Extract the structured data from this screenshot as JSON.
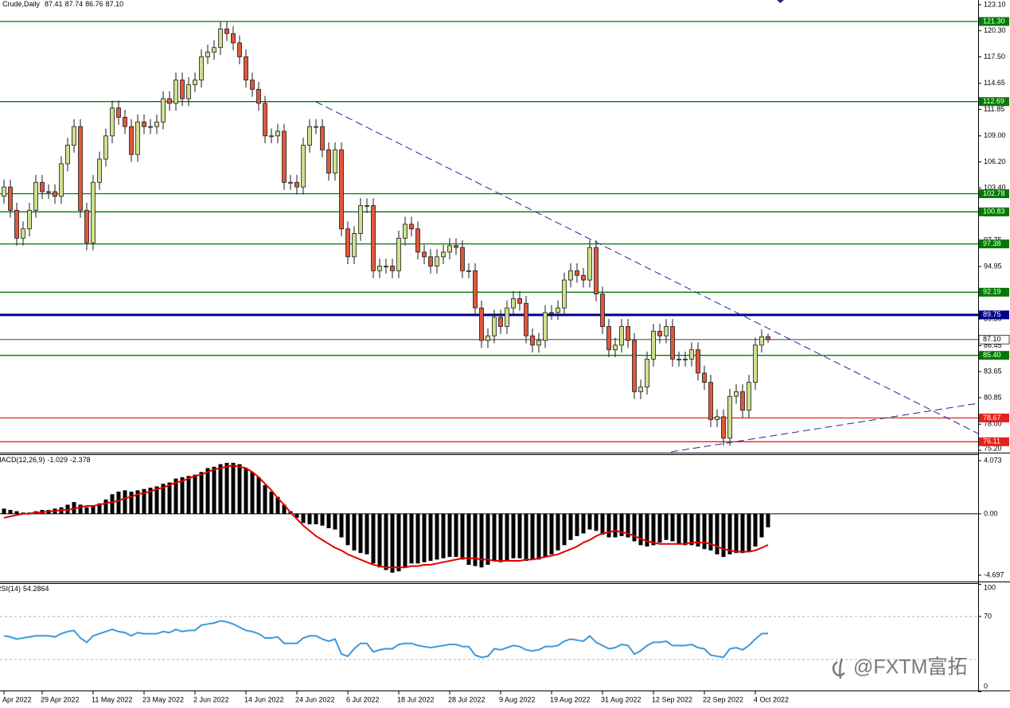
{
  "chart_data": {
    "type": "candlestick",
    "symbol": "Crude,Daily",
    "ohlc_label": [
      "87.41",
      "87.74",
      "86.76",
      "87.10"
    ],
    "categories": [
      "Apr 2022",
      null,
      null,
      null,
      null,
      null,
      "29 Apr 2022",
      null,
      null,
      null,
      null,
      null,
      null,
      null,
      "11 May 2022",
      null,
      null,
      null,
      null,
      null,
      null,
      null,
      "23 May 2022",
      null,
      null,
      null,
      null,
      null,
      null,
      null,
      "2 Jun 2022",
      null,
      null,
      null,
      null,
      null,
      null,
      null,
      "14 Jun 2022",
      null,
      null,
      null,
      null,
      null,
      null,
      null,
      "24 Jun 2022",
      null,
      null,
      null,
      null,
      null,
      null,
      null,
      "6 Jul 2022",
      null,
      null,
      null,
      null,
      null,
      null,
      null,
      "18 Jul 2022",
      null,
      null,
      null,
      null,
      null,
      null,
      null,
      "28 Jul 2022",
      null,
      null,
      null,
      null,
      null,
      null,
      null,
      "9 Aug 2022",
      null,
      null,
      null,
      null,
      null,
      null,
      null,
      "19 Aug 2022",
      null,
      null,
      null,
      null,
      null,
      null,
      null,
      "31 Aug 2022",
      null,
      null,
      null,
      null,
      null,
      null,
      null,
      "12 Sep 2022",
      null,
      null,
      null,
      null,
      null,
      null,
      null,
      "22 Sep 2022",
      null,
      null,
      null,
      null,
      null,
      null,
      null,
      "4 Oct 2022",
      null,
      null
    ],
    "candles": [
      [
        102.5,
        104.3,
        101.7,
        103.5
      ],
      [
        103.5,
        104.3,
        100.2,
        101
      ],
      [
        101,
        101.8,
        97.2,
        98
      ],
      [
        98,
        99.8,
        97.2,
        99
      ],
      [
        99,
        101.8,
        98.2,
        101
      ],
      [
        101,
        104.8,
        100.2,
        104
      ],
      [
        104,
        104.8,
        102.2,
        103
      ],
      [
        103,
        103.8,
        102.2,
        103
      ],
      [
        103,
        103.8,
        101.7,
        102.5
      ],
      [
        102.5,
        106.8,
        101.7,
        106
      ],
      [
        106,
        108.8,
        105.2,
        108
      ],
      [
        108,
        110.8,
        107.2,
        110
      ],
      [
        110,
        110.8,
        100.2,
        101
      ],
      [
        101,
        101.8,
        96.7,
        97.5
      ],
      [
        97.5,
        104.8,
        96.7,
        104
      ],
      [
        104,
        107.3,
        103.2,
        106.5
      ],
      [
        106.5,
        109.8,
        105.7,
        109
      ],
      [
        109,
        112.8,
        108.2,
        112
      ],
      [
        112,
        112.8,
        110.2,
        111
      ],
      [
        111,
        111.8,
        109.2,
        110
      ],
      [
        110,
        110.8,
        106.2,
        107
      ],
      [
        107,
        111.3,
        106.2,
        110.5
      ],
      [
        110.5,
        111.3,
        109.2,
        110
      ],
      [
        110,
        110.8,
        109.2,
        110
      ],
      [
        110,
        111.3,
        109.2,
        110.5
      ],
      [
        110.5,
        113.8,
        109.7,
        113
      ],
      [
        113,
        113.8,
        111.7,
        112.5
      ],
      [
        112.5,
        115.8,
        111.7,
        115
      ],
      [
        115,
        115.8,
        112.2,
        113
      ],
      [
        113,
        115.3,
        112.2,
        114.5
      ],
      [
        114.5,
        115.8,
        113.7,
        115
      ],
      [
        115,
        118.3,
        114.2,
        117.5
      ],
      [
        117.5,
        118.8,
        116.7,
        118
      ],
      [
        118,
        119.3,
        117.2,
        118.5
      ],
      [
        118.5,
        121.3,
        117.7,
        120.5
      ],
      [
        120.5,
        121.3,
        119.2,
        120
      ],
      [
        120,
        120.8,
        118.2,
        119
      ],
      [
        119,
        119.8,
        116.7,
        117.5
      ],
      [
        117.5,
        118.3,
        114.2,
        115
      ],
      [
        115,
        115.8,
        113.2,
        114
      ],
      [
        114,
        114.8,
        111.7,
        112.5
      ],
      [
        112.5,
        113.3,
        108.2,
        109
      ],
      [
        109,
        109.8,
        108.2,
        109
      ],
      [
        109,
        110.3,
        108.2,
        109.5
      ],
      [
        109.5,
        110.3,
        103.2,
        104
      ],
      [
        104,
        104.8,
        103.2,
        104
      ],
      [
        104,
        104.8,
        102.7,
        103.5
      ],
      [
        103.5,
        108.8,
        102.7,
        108
      ],
      [
        108,
        110.8,
        107.2,
        110
      ],
      [
        110,
        110.8,
        109.2,
        110
      ],
      [
        110,
        110.8,
        106.7,
        107.5
      ],
      [
        107.5,
        108.3,
        104.2,
        105
      ],
      [
        105,
        108.3,
        104.2,
        107.5
      ],
      [
        107.5,
        108.3,
        98.2,
        99
      ],
      [
        99,
        99.8,
        95.2,
        96
      ],
      [
        96,
        99.3,
        95.2,
        98.5
      ],
      [
        98.5,
        102.3,
        97.7,
        101.5
      ],
      [
        101.5,
        102.3,
        100.7,
        101.5
      ],
      [
        101.5,
        102.3,
        93.7,
        94.5
      ],
      [
        94.5,
        95.8,
        93.7,
        95
      ],
      [
        95,
        95.8,
        94.2,
        95
      ],
      [
        95,
        95.8,
        93.7,
        94.5
      ],
      [
        94.5,
        98.8,
        93.7,
        98
      ],
      [
        98,
        100.3,
        97.2,
        99.5
      ],
      [
        99.5,
        100.3,
        98.2,
        99
      ],
      [
        99,
        99.8,
        95.7,
        96.5
      ],
      [
        96.5,
        97.3,
        95.2,
        96
      ],
      [
        96,
        96.8,
        94.2,
        95
      ],
      [
        95,
        96.8,
        94.2,
        96
      ],
      [
        96,
        97.3,
        95.2,
        96.5
      ],
      [
        96.5,
        98,
        95.7,
        97.2
      ],
      [
        97.2,
        98,
        96.2,
        97
      ],
      [
        97,
        97.8,
        93.7,
        94.5
      ],
      [
        94.5,
        95.3,
        93.7,
        94.5
      ],
      [
        94.5,
        95.3,
        89.7,
        90.5
      ],
      [
        90.5,
        91.3,
        86.2,
        87
      ],
      [
        87,
        88.3,
        86.2,
        87.5
      ],
      [
        87.5,
        90.3,
        86.7,
        89.5
      ],
      [
        89.5,
        90.3,
        87.7,
        88.5
      ],
      [
        88.5,
        91.3,
        87.7,
        90.5
      ],
      [
        90.5,
        92.3,
        89.7,
        91.5
      ],
      [
        91.5,
        92.3,
        90.2,
        91
      ],
      [
        91,
        91.8,
        86.7,
        87.5
      ],
      [
        87.5,
        88.3,
        85.7,
        86.5
      ],
      [
        86.5,
        87.8,
        85.7,
        87
      ],
      [
        87,
        90.8,
        86.2,
        90
      ],
      [
        90,
        90.8,
        89.2,
        90
      ],
      [
        90,
        91.3,
        89.2,
        90.5
      ],
      [
        90.5,
        94.3,
        89.7,
        93.5
      ],
      [
        93.5,
        95.3,
        92.7,
        94.5
      ],
      [
        94.5,
        95.3,
        93.2,
        94
      ],
      [
        94,
        94.8,
        92.7,
        93.5
      ],
      [
        93.5,
        97.8,
        92.7,
        97
      ],
      [
        97,
        97.8,
        91.2,
        92
      ],
      [
        92,
        92.8,
        87.7,
        88.5
      ],
      [
        88.5,
        89.3,
        85.2,
        86
      ],
      [
        86,
        87.3,
        85.2,
        86.5
      ],
      [
        86.5,
        89.3,
        85.7,
        88.5
      ],
      [
        88.5,
        89.3,
        86.2,
        87
      ],
      [
        87,
        87.8,
        80.7,
        81.5
      ],
      [
        81.5,
        82.8,
        80.7,
        82
      ],
      [
        82,
        85.8,
        81.2,
        85
      ],
      [
        85,
        88.8,
        84.2,
        88
      ],
      [
        88,
        88.8,
        86.7,
        87.5
      ],
      [
        87.5,
        89.3,
        86.7,
        88.5
      ],
      [
        88.5,
        89.3,
        84.2,
        85
      ],
      [
        85,
        85.8,
        84.2,
        85
      ],
      [
        85,
        85.8,
        84.2,
        85
      ],
      [
        85,
        86.8,
        84.2,
        86
      ],
      [
        86,
        86.8,
        82.7,
        83.5
      ],
      [
        83.5,
        84.3,
        81.7,
        82.5
      ],
      [
        82.5,
        83.3,
        77.7,
        78.5
      ],
      [
        78.5,
        79.6,
        77.7,
        78.8
      ],
      [
        78.8,
        79.6,
        75.7,
        76.5
      ],
      [
        76.5,
        81.8,
        75.7,
        81
      ],
      [
        81,
        82.3,
        80.2,
        81.5
      ],
      [
        81.5,
        82.3,
        78.7,
        79.5
      ],
      [
        79.5,
        83.3,
        78.7,
        82.5
      ],
      [
        82.5,
        87.3,
        81.7,
        86.5
      ],
      [
        86.5,
        88.2,
        85.7,
        87.41
      ],
      [
        87.41,
        87.74,
        86.76,
        87.1
      ]
    ],
    "colors": {
      "up": "#cfe08c",
      "down": "#e2573a",
      "outline": "#1a1a1a"
    },
    "ylim": [
      74.94,
      123.61
    ],
    "yticks": [
      {
        "value": 123.1,
        "label": "123.10"
      },
      {
        "value": 120.3,
        "label": "120.30"
      },
      {
        "value": 117.5,
        "label": "117.50"
      },
      114.65,
      111.85,
      {
        "value": 109,
        "label": "109.00"
      },
      {
        "value": 106.2,
        "label": "106.20"
      },
      {
        "value": 103.4,
        "label": "103.40"
      },
      100.55,
      97.75,
      94.95,
      {
        "value": 92.1,
        "label": "92.10"
      },
      {
        "value": 89.3,
        "label": "89.30"
      },
      86.45,
      83.65,
      80.85,
      {
        "value": 78,
        "label": "78.00"
      },
      {
        "value": 75.2,
        "label": "75.20"
      }
    ],
    "levels": [
      {
        "value": 121.3,
        "label": "121.30",
        "color": "#007a00"
      },
      {
        "value": 112.69,
        "label": "112.69",
        "color": "#007a00"
      },
      {
        "value": 102.78,
        "label": "102.78",
        "color": "#007a00"
      },
      {
        "value": 100.83,
        "label": "100.83",
        "color": "#007a00"
      },
      {
        "value": 97.38,
        "label": "97.38",
        "color": "#007a00"
      },
      {
        "value": 92.19,
        "label": "92.19",
        "color": "#007a00"
      },
      {
        "value": 89.75,
        "label": "89.75",
        "color": "#00008b",
        "width": 3
      },
      {
        "value": 85.4,
        "label": "85.40",
        "color": "#007a00"
      },
      {
        "value": 78.67,
        "label": "78.67",
        "color": "#e8201c"
      },
      {
        "value": 76.11,
        "label": "76.11",
        "color": "#e8201c"
      }
    ],
    "price_line": {
      "value": 87.1,
      "label": "87.10"
    },
    "macd": {
      "label": "MACD(12,26,9)",
      "histogram": [
        0.4,
        0.3,
        0.2,
        0.1,
        0.1,
        0.2,
        0.3,
        0.3,
        0.4,
        0.5,
        0.7,
        0.9,
        0.7,
        0.5,
        0.6,
        0.8,
        1.1,
        1.5,
        1.7,
        1.8,
        1.7,
        1.8,
        1.9,
        2.0,
        2.1,
        2.3,
        2.4,
        2.7,
        2.8,
        2.9,
        3.0,
        3.2,
        3.5,
        3.6,
        3.8,
        3.9,
        3.9,
        3.8,
        3.5,
        3.2,
        2.8,
        2.2,
        1.7,
        1.3,
        0.7,
        0.2,
        -0.3,
        -0.7,
        -0.8,
        -0.8,
        -0.9,
        -1.1,
        -1.2,
        -1.8,
        -2.4,
        -2.8,
        -3.0,
        -3.1,
        -3.8,
        -4.1,
        -4.3,
        -4.5,
        -4.4,
        -4.1,
        -3.8,
        -3.8,
        -3.7,
        -3.6,
        -3.5,
        -3.4,
        -3.3,
        -3.3,
        -3.5,
        -3.9,
        -4.0,
        -4.1,
        -3.9,
        -3.6,
        -3.7,
        -3.6,
        -3.4,
        -3.4,
        -3.6,
        -3.5,
        -3.5,
        -3.3,
        -3.1,
        -2.8,
        -2.4,
        -2.0,
        -1.7,
        -1.5,
        -1.2,
        -1.3,
        -1.6,
        -1.8,
        -1.8,
        -1.7,
        -1.8,
        -2.1,
        -2.4,
        -2.5,
        -2.4,
        -2.2,
        -2.0,
        -2.1,
        -2.3,
        -2.4,
        -2.4,
        -2.5,
        -2.7,
        -2.8,
        -3.1,
        -3.3,
        -3.1,
        -3.0,
        -3.0,
        -2.9,
        -2.5,
        -1.8,
        -1.029
      ],
      "signal": [
        -0.3,
        -0.2,
        -0.1,
        0,
        0,
        0.1,
        0.1,
        0.2,
        0.2,
        0.3,
        0.3,
        0.4,
        0.5,
        0.6,
        0.6,
        0.7,
        0.8,
        0.9,
        1.0,
        1.2,
        1.3,
        1.5,
        1.6,
        1.7,
        1.9,
        2.0,
        2.2,
        2.4,
        2.5,
        2.7,
        2.9,
        3.0,
        3.2,
        3.4,
        3.5,
        3.6,
        3.7,
        3.6,
        3.5,
        3.2,
        2.8,
        2.3,
        1.8,
        1.2,
        0.7,
        0.1,
        -0.4,
        -0.9,
        -1.3,
        -1.7,
        -2.0,
        -2.3,
        -2.6,
        -2.8,
        -3.1,
        -3.3,
        -3.5,
        -3.7,
        -3.9,
        -4.0,
        -4.1,
        -4.1,
        -4.1,
        -4.1,
        -4.0,
        -4.0,
        -3.9,
        -3.9,
        -3.8,
        -3.7,
        -3.6,
        -3.5,
        -3.4,
        -3.4,
        -3.4,
        -3.5,
        -3.5,
        -3.6,
        -3.6,
        -3.6,
        -3.6,
        -3.6,
        -3.5,
        -3.5,
        -3.4,
        -3.3,
        -3.2,
        -3.1,
        -2.9,
        -2.7,
        -2.5,
        -2.2,
        -2.0,
        -1.7,
        -1.5,
        -1.4,
        -1.3,
        -1.4,
        -1.5,
        -1.7,
        -1.9,
        -2.1,
        -2.2,
        -2.3,
        -2.3,
        -2.3,
        -2.3,
        -2.3,
        -2.2,
        -2.2,
        -2.2,
        -2.3,
        -2.5,
        -2.7,
        -2.8,
        -2.9,
        -2.9,
        -2.9,
        -2.8,
        -2.6,
        -2.378
      ],
      "hist_color": "#000000",
      "signal_color": "#e00000",
      "ylim": [
        -5.18,
        4.5
      ],
      "yticks": [
        4.073,
        {
          "value": 0,
          "label": "0.00"
        },
        -4.697
      ]
    },
    "rsi": {
      "label": "RSI(14)",
      "values": [
        52,
        51,
        49,
        50,
        51,
        52,
        52,
        52,
        51,
        54,
        56,
        57,
        50,
        46,
        52,
        54,
        56,
        58,
        56,
        55,
        52,
        55,
        54,
        54,
        54,
        56,
        55,
        58,
        56,
        57,
        57,
        62,
        63,
        64,
        66,
        65,
        63,
        60,
        57,
        56,
        54,
        50,
        50,
        51,
        45,
        45,
        45,
        50,
        52,
        52,
        49,
        47,
        49,
        35,
        33,
        40,
        45,
        45,
        37,
        39,
        40,
        40,
        44,
        45,
        45,
        43,
        42,
        41,
        42,
        43,
        44,
        44,
        42,
        42,
        34,
        32,
        33,
        40,
        39,
        41,
        43,
        42,
        39,
        38,
        39,
        42,
        42,
        43,
        47,
        49,
        48,
        47,
        52,
        46,
        43,
        40,
        41,
        44,
        43,
        35,
        38,
        43,
        46,
        46,
        47,
        43,
        43,
        43,
        44,
        41,
        40,
        34,
        33,
        32,
        40,
        41,
        39,
        43,
        49,
        54,
        54.2864
      ],
      "color": "#3d98dc",
      "ylim": [
        0,
        100
      ],
      "yticks": [
        100,
        70,
        0
      ],
      "levels": [
        70,
        30
      ]
    },
    "watermark": "@FXTM富拓"
  }
}
